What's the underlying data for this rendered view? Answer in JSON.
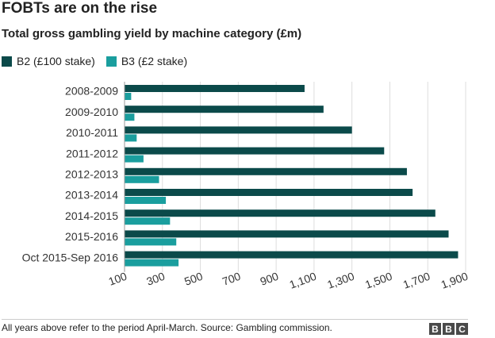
{
  "chart_data": {
    "type": "bar",
    "orientation": "horizontal",
    "title": "FOBTs are on the rise",
    "subtitle": "Total gross gambling yield by machine category (£m)",
    "categories": [
      "2008-2009",
      "2009-2010",
      "2010-2011",
      "2011-2012",
      "2012-2013",
      "2013-2014",
      "2014-2015",
      "2015-2016",
      "Oct 2015-Sep 2016"
    ],
    "series": [
      {
        "name": "B2 (£100 stake)",
        "color": "#0b4a4a",
        "values": [
          1050,
          1150,
          1300,
          1470,
          1590,
          1620,
          1740,
          1810,
          1860
        ]
      },
      {
        "name": "B3 (£2 stake)",
        "color": "#1a9e9e",
        "values": [
          135,
          152,
          164,
          200,
          282,
          318,
          340,
          373,
          385
        ]
      }
    ],
    "xticks": [
      "100",
      "300",
      "500",
      "700",
      "900",
      "1,100",
      "1,300",
      "1,500",
      "1,700",
      "1,900"
    ],
    "xlim": [
      100,
      1900
    ],
    "grid": true,
    "legend_position": "top-left"
  },
  "footer": {
    "note": "All years above refer to the period April-March. Source: Gambling commission.",
    "logo_letters": [
      "B",
      "B",
      "C"
    ]
  }
}
